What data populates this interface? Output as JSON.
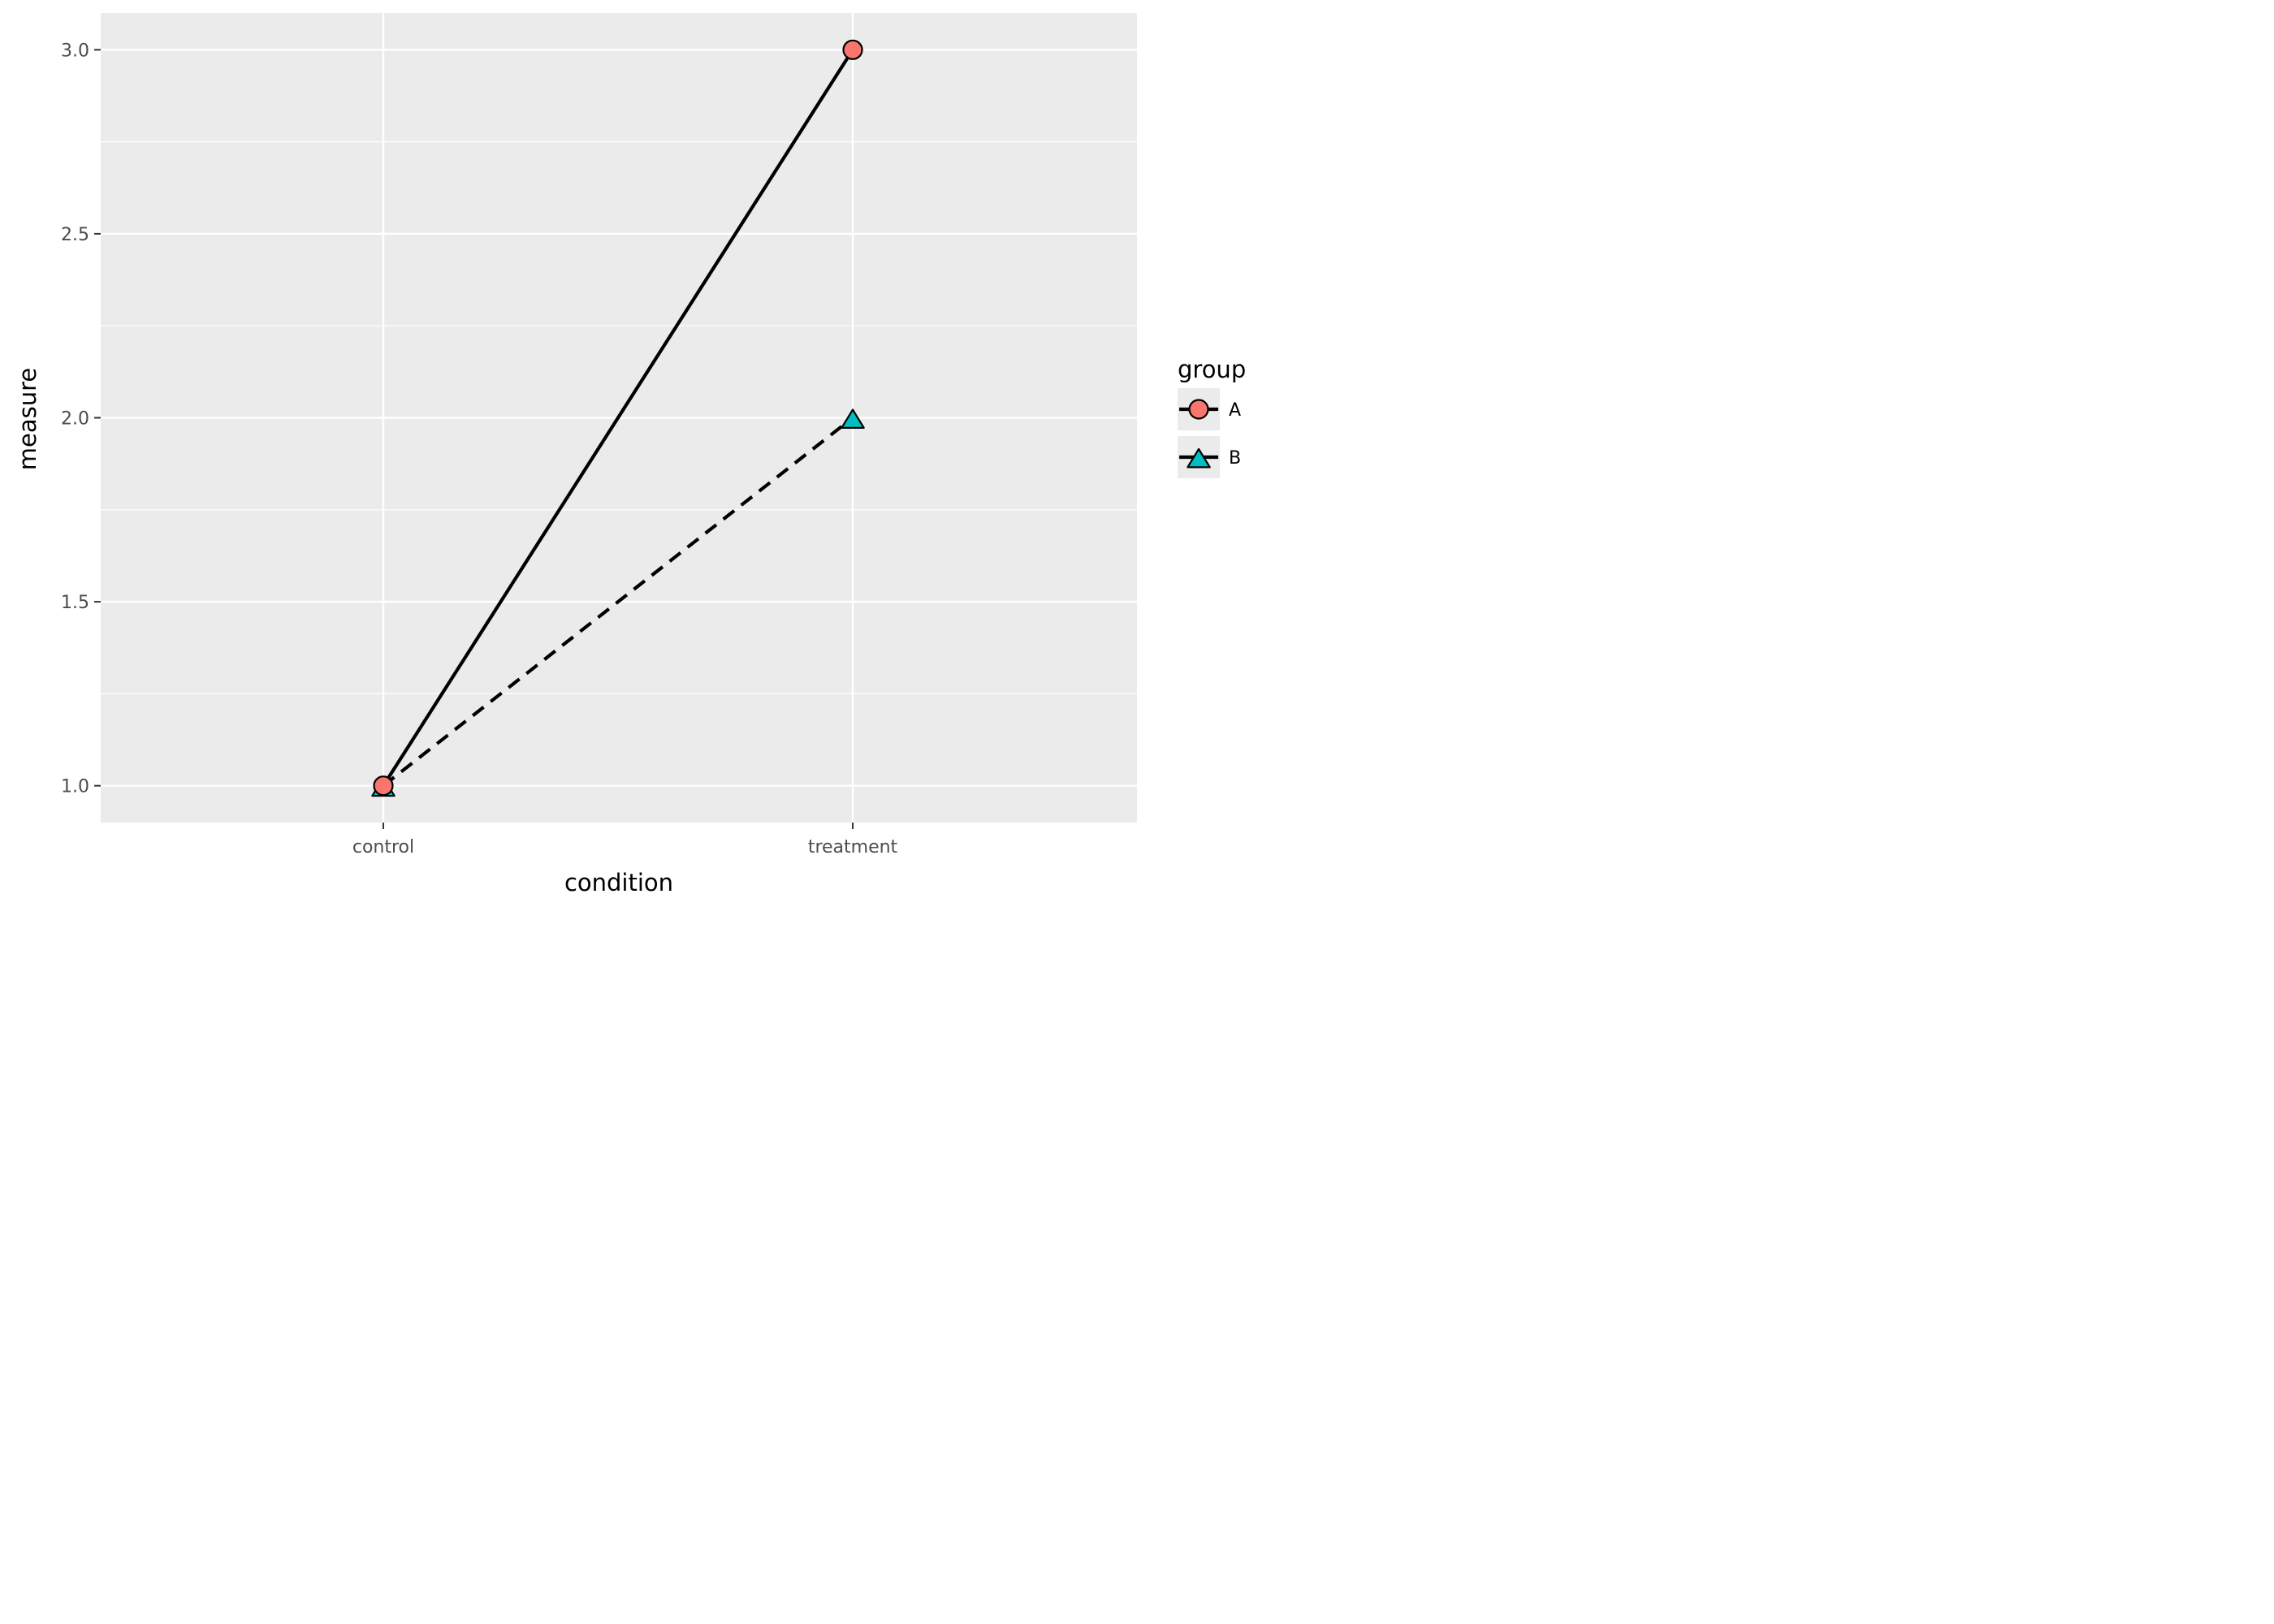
{
  "chart_data": {
    "type": "line",
    "categories": [
      "control",
      "treatment"
    ],
    "xlabel": "condition",
    "ylabel": "measure",
    "ylim": [
      0.9,
      3.1
    ],
    "y_ticks": [
      1.0,
      1.5,
      2.0,
      2.5,
      3.0
    ],
    "y_tick_labels": [
      "1.0",
      "1.5",
      "2.0",
      "2.5",
      "3.0"
    ],
    "grid": true,
    "legend": {
      "title": "group",
      "position": "right"
    },
    "colors": {
      "panel": "#ebebeb",
      "grid": "#ffffff",
      "A": "#f8766d",
      "B": "#00bfc4",
      "line": "#000000"
    },
    "series": [
      {
        "name": "A",
        "values": [
          1.0,
          3.0
        ],
        "marker": "circle",
        "linestyle": "solid"
      },
      {
        "name": "B",
        "values": [
          1.0,
          2.0
        ],
        "marker": "triangle",
        "linestyle": "dashed"
      }
    ]
  }
}
